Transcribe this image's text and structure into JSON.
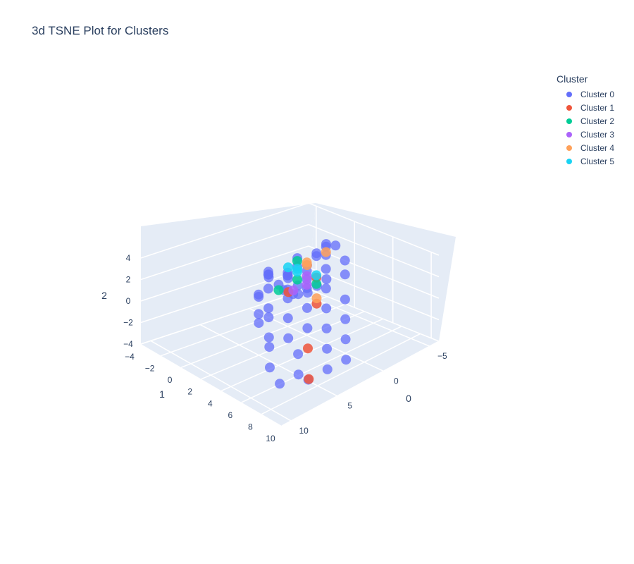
{
  "chart_data": {
    "type": "scatter",
    "dims": 3,
    "title": "3d TSNE Plot for Clusters",
    "legend_title": "Cluster",
    "legend_position": "top-right",
    "axes": {
      "x": {
        "title": "1",
        "ticks": [
          "−4",
          "−2",
          "0",
          "2",
          "4",
          "6",
          "8",
          "10"
        ],
        "range": [
          -4,
          10
        ]
      },
      "y": {
        "title": "0",
        "ticks": [
          "−5",
          "0",
          "5",
          "10"
        ],
        "range": [
          -6,
          11
        ]
      },
      "z": {
        "title": "2",
        "ticks": [
          "−4",
          "−2",
          "0",
          "2",
          "4"
        ],
        "range": [
          -4,
          4
        ]
      }
    },
    "series": [
      {
        "name": "Cluster 0",
        "color": "#636efa",
        "points": [
          [
            -2,
            -3,
            -2
          ],
          [
            -2,
            -2,
            -1
          ],
          [
            -2.5,
            -3,
            -3
          ],
          [
            -1,
            -1,
            0
          ],
          [
            0,
            -2,
            1
          ],
          [
            0,
            -1,
            2
          ],
          [
            1,
            -2,
            2.5
          ],
          [
            1,
            -3,
            3
          ],
          [
            2,
            -2,
            3.5
          ],
          [
            2,
            -1,
            3
          ],
          [
            1,
            0,
            2
          ],
          [
            0,
            0,
            1
          ],
          [
            3,
            -2,
            4
          ],
          [
            3,
            -1,
            3.5
          ],
          [
            4,
            -2,
            3
          ],
          [
            4,
            0,
            3
          ],
          [
            5,
            -1,
            2.5
          ],
          [
            5,
            1,
            2
          ],
          [
            6,
            0,
            1
          ],
          [
            6,
            2,
            1
          ],
          [
            7,
            1,
            0
          ],
          [
            7,
            3,
            0
          ],
          [
            8,
            2,
            -1
          ],
          [
            8,
            4,
            -1
          ],
          [
            9,
            3,
            -2
          ],
          [
            9,
            5,
            -2
          ],
          [
            8,
            6,
            -3
          ],
          [
            7,
            6,
            -3
          ],
          [
            6,
            5,
            -2
          ],
          [
            7,
            8,
            -3
          ],
          [
            6,
            8,
            -2
          ],
          [
            5,
            7,
            -1
          ],
          [
            4,
            6,
            -1
          ],
          [
            3,
            5,
            0
          ],
          [
            2,
            4,
            0
          ],
          [
            1,
            3,
            1
          ],
          [
            0,
            2,
            1.5
          ],
          [
            -1,
            1,
            1
          ],
          [
            -2,
            0,
            0
          ],
          [
            -3,
            -1,
            -1
          ],
          [
            -3,
            -2,
            -2
          ],
          [
            -3.5,
            -3,
            -3
          ],
          [
            -3,
            -4,
            -3.5
          ],
          [
            -2,
            -4,
            -3
          ],
          [
            -1,
            -4,
            -2
          ],
          [
            0,
            -4,
            -1
          ],
          [
            2,
            0,
            2
          ],
          [
            3,
            1,
            2
          ],
          [
            4,
            2,
            2
          ],
          [
            5,
            3,
            1
          ],
          [
            6,
            4,
            0
          ],
          [
            0,
            3,
            0
          ],
          [
            1,
            4,
            -1
          ],
          [
            2,
            5,
            -1
          ],
          [
            -1,
            2,
            -1
          ],
          [
            3,
            3,
            1
          ],
          [
            4,
            4,
            0
          ],
          [
            2,
            2,
            1
          ],
          [
            1,
            1,
            1.5
          ],
          [
            5,
            5,
            -1
          ]
        ]
      },
      {
        "name": "Cluster 1",
        "color": "#ef553b",
        "points": [
          [
            -3,
            -3,
            -3
          ],
          [
            2,
            -1,
            1
          ],
          [
            5,
            2,
            1
          ],
          [
            7,
            5,
            -1
          ],
          [
            9,
            7,
            -2
          ]
        ]
      },
      {
        "name": "Cluster 2",
        "color": "#00cc96",
        "points": [
          [
            -3,
            -2,
            -2.5
          ],
          [
            0,
            -1,
            0
          ],
          [
            1,
            0,
            2.5
          ],
          [
            4,
            1,
            2
          ]
        ]
      },
      {
        "name": "Cluster 3",
        "color": "#ab63fa",
        "points": [
          [
            -3,
            -3.5,
            -3
          ],
          [
            2,
            0,
            1.5
          ],
          [
            3,
            1,
            1.5
          ]
        ]
      },
      {
        "name": "Cluster 4",
        "color": "#ffa15a",
        "points": [
          [
            0,
            -2,
            1
          ],
          [
            1,
            -1,
            2
          ],
          [
            2,
            -2,
            3
          ],
          [
            5,
            2,
            1.5
          ]
        ]
      },
      {
        "name": "Cluster 5",
        "color": "#19d3f3",
        "points": [
          [
            -2,
            -2,
            0
          ],
          [
            0,
            -1,
            1
          ],
          [
            1,
            0,
            1.5
          ],
          [
            3,
            0,
            2
          ]
        ]
      }
    ]
  }
}
